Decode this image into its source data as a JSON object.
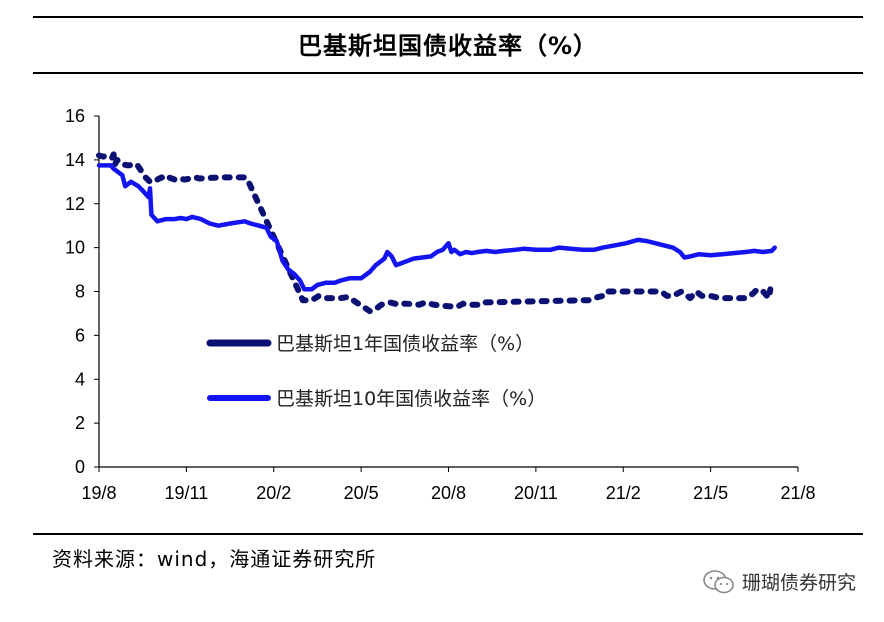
{
  "title": "巴基斯坦国债收益率（%）",
  "source": "资料来源：wind，海通证券研究所",
  "watermark": {
    "text": "珊瑚债券研究",
    "icon": "wechat-icon"
  },
  "colors": {
    "series1": "#0b1172",
    "series2": "#1414f0",
    "axis": "#000000"
  },
  "chart_data": {
    "type": "line",
    "title": "巴基斯坦国债收益率（%）",
    "xlabel": "",
    "ylabel": "",
    "x_ticks": [
      "19/8",
      "19/11",
      "20/2",
      "20/5",
      "20/8",
      "20/11",
      "21/2",
      "21/5",
      "21/8"
    ],
    "ylim": [
      0,
      16
    ],
    "y_ticks": [
      0,
      2,
      4,
      6,
      8,
      10,
      12,
      14,
      16
    ],
    "legend": "inside-middle-left",
    "series": [
      {
        "name": "巴基斯坦1年国债收益率（%）",
        "style": "dotted",
        "points": [
          [
            0.0,
            14.2
          ],
          [
            0.15,
            14.15
          ],
          [
            0.3,
            14.2
          ],
          [
            0.45,
            14.1
          ],
          [
            0.5,
            14.25
          ],
          [
            0.55,
            13.8
          ],
          [
            0.62,
            14.0
          ],
          [
            0.8,
            13.8
          ],
          [
            1.0,
            13.75
          ],
          [
            1.3,
            13.8
          ],
          [
            1.45,
            13.5
          ],
          [
            1.6,
            13.2
          ],
          [
            1.75,
            13.0
          ],
          [
            1.85,
            13.0
          ],
          [
            2.15,
            13.2
          ],
          [
            2.3,
            13.1
          ],
          [
            2.4,
            13.2
          ],
          [
            2.6,
            13.1
          ],
          [
            2.75,
            13.15
          ],
          [
            2.95,
            13.1
          ],
          [
            3.3,
            13.2
          ],
          [
            3.45,
            13.15
          ],
          [
            4.15,
            13.2
          ],
          [
            4.3,
            13.2
          ],
          [
            5.0,
            13.2
          ],
          [
            5.1,
            13.1
          ],
          [
            7.0,
            7.6
          ],
          [
            7.3,
            7.6
          ],
          [
            7.55,
            7.8
          ],
          [
            7.8,
            7.7
          ],
          [
            8.3,
            7.7
          ],
          [
            8.55,
            7.75
          ],
          [
            9.3,
            7.1
          ],
          [
            9.5,
            7.2
          ],
          [
            9.7,
            7.4
          ],
          [
            10.0,
            7.5
          ],
          [
            10.3,
            7.4
          ],
          [
            10.5,
            7.45
          ],
          [
            11.0,
            7.4
          ],
          [
            11.2,
            7.5
          ],
          [
            11.5,
            7.4
          ],
          [
            11.8,
            7.35
          ],
          [
            12.3,
            7.3
          ],
          [
            12.5,
            7.45
          ],
          [
            12.6,
            7.4
          ],
          [
            13.0,
            7.4
          ],
          [
            13.1,
            7.5
          ],
          [
            16.6,
            7.6
          ],
          [
            16.8,
            7.6
          ],
          [
            17.0,
            7.7
          ],
          [
            17.3,
            7.8
          ],
          [
            17.4,
            8.0
          ],
          [
            18.3,
            8.0
          ],
          [
            19.3,
            8.0
          ],
          [
            19.5,
            7.8
          ],
          [
            19.7,
            7.8
          ],
          [
            20.0,
            8.0
          ],
          [
            20.3,
            7.7
          ],
          [
            20.5,
            8.0
          ],
          [
            20.7,
            7.8
          ],
          [
            21.0,
            7.8
          ],
          [
            21.3,
            7.7
          ],
          [
            22.2,
            7.7
          ],
          [
            22.45,
            7.9
          ],
          [
            22.6,
            8.1
          ],
          [
            22.8,
            8.0
          ],
          [
            23.0,
            7.7
          ],
          [
            23.05,
            8.1
          ]
        ]
      },
      {
        "name": "巴基斯坦10年国债收益率（%）",
        "style": "solid",
        "points": [
          [
            0.0,
            13.75
          ],
          [
            0.4,
            13.75
          ],
          [
            0.5,
            13.6
          ],
          [
            0.8,
            13.3
          ],
          [
            0.9,
            12.8
          ],
          [
            1.1,
            13.0
          ],
          [
            1.35,
            12.8
          ],
          [
            1.5,
            12.6
          ],
          [
            1.7,
            12.3
          ],
          [
            1.75,
            12.7
          ],
          [
            1.8,
            11.5
          ],
          [
            2.0,
            11.2
          ],
          [
            2.3,
            11.3
          ],
          [
            2.6,
            11.3
          ],
          [
            2.8,
            11.35
          ],
          [
            3.0,
            11.3
          ],
          [
            3.2,
            11.4
          ],
          [
            3.5,
            11.3
          ],
          [
            3.8,
            11.1
          ],
          [
            4.1,
            11.0
          ],
          [
            4.5,
            11.1
          ],
          [
            5.0,
            11.2
          ],
          [
            5.2,
            11.1
          ],
          [
            5.5,
            11.0
          ],
          [
            5.75,
            10.9
          ],
          [
            5.9,
            10.5
          ],
          [
            6.1,
            10.3
          ],
          [
            6.3,
            9.4
          ],
          [
            6.5,
            9.0
          ],
          [
            6.7,
            8.8
          ],
          [
            6.9,
            8.5
          ],
          [
            7.05,
            8.1
          ],
          [
            7.3,
            8.1
          ],
          [
            7.5,
            8.3
          ],
          [
            7.8,
            8.4
          ],
          [
            8.1,
            8.4
          ],
          [
            8.3,
            8.5
          ],
          [
            8.6,
            8.6
          ],
          [
            9.0,
            8.6
          ],
          [
            9.3,
            8.9
          ],
          [
            9.5,
            9.2
          ],
          [
            9.8,
            9.5
          ],
          [
            9.9,
            9.8
          ],
          [
            10.05,
            9.6
          ],
          [
            10.2,
            9.2
          ],
          [
            10.4,
            9.3
          ],
          [
            10.6,
            9.4
          ],
          [
            10.8,
            9.5
          ],
          [
            11.1,
            9.55
          ],
          [
            11.4,
            9.6
          ],
          [
            11.6,
            9.8
          ],
          [
            11.8,
            9.9
          ],
          [
            12.0,
            10.2
          ],
          [
            12.1,
            9.8
          ],
          [
            12.2,
            9.9
          ],
          [
            12.4,
            9.7
          ],
          [
            12.6,
            9.8
          ],
          [
            12.8,
            9.75
          ],
          [
            13.0,
            9.8
          ],
          [
            13.3,
            9.85
          ],
          [
            13.6,
            9.8
          ],
          [
            13.9,
            9.85
          ],
          [
            14.3,
            9.9
          ],
          [
            14.6,
            9.95
          ],
          [
            15.0,
            9.9
          ],
          [
            15.5,
            9.9
          ],
          [
            15.8,
            10.0
          ],
          [
            16.2,
            9.95
          ],
          [
            16.6,
            9.9
          ],
          [
            17.0,
            9.9
          ],
          [
            17.3,
            10.0
          ],
          [
            17.7,
            10.1
          ],
          [
            18.1,
            10.2
          ],
          [
            18.5,
            10.35
          ],
          [
            18.8,
            10.3
          ],
          [
            19.1,
            10.2
          ],
          [
            19.4,
            10.1
          ],
          [
            19.7,
            10.0
          ],
          [
            19.95,
            9.8
          ],
          [
            20.1,
            9.55
          ],
          [
            20.3,
            9.6
          ],
          [
            20.6,
            9.7
          ],
          [
            21.0,
            9.65
          ],
          [
            21.4,
            9.7
          ],
          [
            21.8,
            9.75
          ],
          [
            22.2,
            9.8
          ],
          [
            22.5,
            9.85
          ],
          [
            22.8,
            9.8
          ],
          [
            23.1,
            9.85
          ],
          [
            23.2,
            10.0
          ]
        ]
      }
    ]
  }
}
